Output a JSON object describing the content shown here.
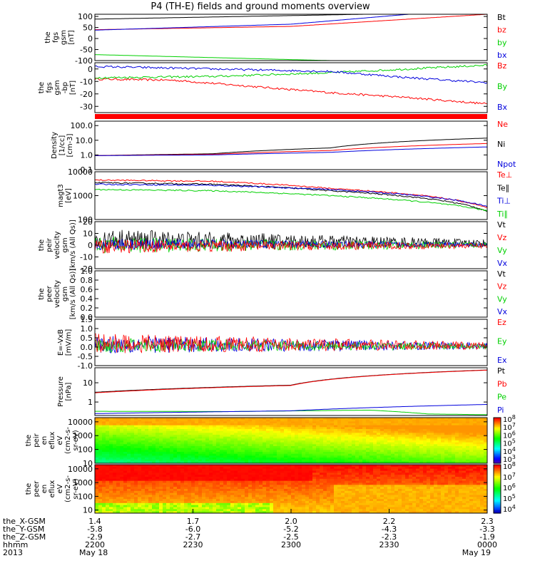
{
  "page": {
    "title": "P4 (TH-E) fields and ground moments overview"
  },
  "colors": {
    "black": "#000000",
    "red": "#ff0000",
    "green": "#00d000",
    "blue": "#0000dd"
  },
  "chart_data": [
    {
      "type": "line",
      "title": "",
      "ylabel": [
        "the",
        "fgs",
        "gsm",
        "[nT]"
      ],
      "ylim": [
        -100,
        110
      ],
      "yticks": [
        {
          "v": 100,
          "t": "100"
        },
        {
          "v": 50,
          "t": "50"
        },
        {
          "v": 0,
          "t": "0"
        },
        {
          "v": -50,
          "t": "-50"
        },
        {
          "v": -100,
          "t": "-100"
        }
      ],
      "legend": [
        {
          "t": "Bt",
          "c": "black"
        },
        {
          "t": "bz",
          "c": "red"
        },
        {
          "t": "by",
          "c": "green"
        },
        {
          "t": "bx",
          "c": "blue"
        }
      ],
      "series": [
        {
          "name": "Bt",
          "color": "black",
          "t": [
            0,
            1
          ],
          "values": [
            88,
            120
          ]
        },
        {
          "name": "bz",
          "color": "red",
          "t": [
            0,
            0.5,
            1
          ],
          "values": [
            40,
            55,
            110
          ]
        },
        {
          "name": "by",
          "color": "green",
          "t": [
            0,
            0.6,
            1
          ],
          "values": [
            -73,
            -100,
            -115
          ]
        },
        {
          "name": "bx",
          "color": "blue",
          "t": [
            0,
            0.5,
            0.8
          ],
          "values": [
            38,
            65,
            110
          ]
        }
      ]
    },
    {
      "type": "line",
      "ylabel": [
        "the",
        "fgs",
        "gsm",
        "-bp",
        "[nT]"
      ],
      "ylim": [
        -35,
        5
      ],
      "yticks": [
        {
          "v": 0,
          "t": "0"
        },
        {
          "v": -10,
          "t": "-10"
        },
        {
          "v": -20,
          "t": "-20"
        },
        {
          "v": -30,
          "t": "-30"
        }
      ],
      "legend": [
        {
          "t": "Bz",
          "c": "red"
        },
        {
          "t": "By",
          "c": "green"
        },
        {
          "t": "Bx",
          "c": "blue"
        }
      ],
      "series": [
        {
          "name": "Bz",
          "color": "red",
          "t": [
            0,
            0.2,
            0.4,
            0.6,
            0.8,
            1
          ],
          "values": [
            -8,
            -9,
            -14,
            -19,
            -23,
            -28
          ]
        },
        {
          "name": "By",
          "color": "green",
          "t": [
            0,
            0.3,
            0.6,
            0.8,
            1
          ],
          "values": [
            -7,
            -6,
            -3,
            0,
            3
          ]
        },
        {
          "name": "Bx",
          "color": "blue",
          "t": [
            0,
            0.3,
            0.6,
            0.8,
            1
          ],
          "values": [
            2,
            0,
            -2,
            -7,
            -11
          ]
        }
      ]
    },
    {
      "type": "bar-indicator",
      "color": "red"
    },
    {
      "type": "line",
      "ylog": true,
      "ylabel": [
        "Density",
        "[1/cc]",
        "[cm-3]"
      ],
      "ylim": [
        0.1,
        200
      ],
      "yticks": [
        {
          "v": 100,
          "t": "100.0"
        },
        {
          "v": 10,
          "t": "10.0"
        },
        {
          "v": 1,
          "t": "1.0"
        },
        {
          "v": 0.1,
          "t": "0.1"
        }
      ],
      "legend": [
        {
          "t": "Ne",
          "c": "red"
        },
        {
          "t": "Ni",
          "c": "black"
        },
        {
          "t": "Npot",
          "c": "blue"
        }
      ],
      "series": [
        {
          "name": "Ni",
          "color": "black",
          "t": [
            0,
            0.3,
            0.6,
            1
          ],
          "values": [
            0.9,
            1.2,
            3.0,
            14
          ]
        },
        {
          "name": "Ne",
          "color": "red",
          "t": [
            0,
            0.3,
            0.6,
            1
          ],
          "values": [
            0.9,
            1.1,
            2.0,
            6
          ]
        },
        {
          "name": "Npot",
          "color": "blue",
          "t": [
            0,
            0.3,
            0.6,
            1
          ],
          "values": [
            0.9,
            1.0,
            1.5,
            3.5
          ]
        }
      ]
    },
    {
      "type": "line",
      "ylog": true,
      "ylabel": [
        "magt3",
        "[eV]"
      ],
      "ylim": [
        100,
        10000
      ],
      "yticks": [
        {
          "v": 10000,
          "t": "10000"
        },
        {
          "v": 1000,
          "t": "1000"
        },
        {
          "v": 100,
          "t": "100"
        }
      ],
      "legend": [
        {
          "t": "Te⊥",
          "c": "red"
        },
        {
          "t": "Te∥",
          "c": "black"
        },
        {
          "t": "Ti⊥",
          "c": "blue"
        },
        {
          "t": "Ti∥",
          "c": "green"
        }
      ],
      "series": [
        {
          "name": "Te⊥",
          "color": "red",
          "t": [
            0,
            0.3,
            0.6,
            1
          ],
          "values": [
            4500,
            4000,
            2000,
            300
          ]
        },
        {
          "name": "Te∥",
          "color": "black",
          "t": [
            0,
            0.3,
            0.6,
            1
          ],
          "values": [
            3500,
            3000,
            1600,
            220
          ]
        },
        {
          "name": "Ti⊥",
          "color": "blue",
          "t": [
            0,
            0.3,
            0.6,
            1
          ],
          "values": [
            3000,
            2700,
            1800,
            350
          ]
        },
        {
          "name": "Ti∥",
          "color": "green",
          "t": [
            0,
            0.3,
            0.6,
            1
          ],
          "values": [
            1800,
            1600,
            1000,
            230
          ]
        }
      ]
    },
    {
      "type": "line",
      "noisy": true,
      "ylabel": [
        "the",
        "peir",
        "velocity",
        "gsm",
        "[km/s (All Qs)]"
      ],
      "ylim": [
        -20,
        20
      ],
      "yticks": [
        {
          "v": 20,
          "t": "20"
        },
        {
          "v": 10,
          "t": "10"
        },
        {
          "v": 0,
          "t": "0"
        },
        {
          "v": -10,
          "t": "-10"
        },
        {
          "v": -20,
          "t": "-20"
        }
      ],
      "legend": [
        {
          "t": "Vt",
          "c": "black"
        },
        {
          "t": "Vz",
          "c": "red"
        },
        {
          "t": "Vy",
          "c": "green"
        },
        {
          "t": "Vx",
          "c": "blue"
        }
      ],
      "series": [
        {
          "name": "Vt",
          "color": "black",
          "base": 5,
          "amp": 9
        },
        {
          "name": "Vy",
          "color": "green",
          "base": 0,
          "amp": 7
        },
        {
          "name": "Vx",
          "color": "blue",
          "base": 1,
          "amp": 5
        },
        {
          "name": "Vz",
          "color": "red",
          "base": -1,
          "amp": 6
        }
      ]
    },
    {
      "type": "line",
      "ylabel": [
        "the",
        "peer",
        "velocity",
        "gsm",
        "[km/s (All Qs)]"
      ],
      "ylim": [
        0,
        1
      ],
      "yticks": [
        {
          "v": 1,
          "t": "1.0"
        },
        {
          "v": 0.8,
          "t": "0.8"
        },
        {
          "v": 0.6,
          "t": "0.6"
        },
        {
          "v": 0.4,
          "t": "0.4"
        },
        {
          "v": 0.2,
          "t": "0.2"
        },
        {
          "v": 0,
          "t": "0.0"
        }
      ],
      "legend": [
        {
          "t": "Vt",
          "c": "black"
        },
        {
          "t": "Vz",
          "c": "red"
        },
        {
          "t": "Vy",
          "c": "green"
        },
        {
          "t": "Vx",
          "c": "blue"
        }
      ],
      "series": []
    },
    {
      "type": "line",
      "noisy": true,
      "ylabel": [
        "E=-VxB",
        "[mV/m]"
      ],
      "ylim": [
        -1,
        1.5
      ],
      "yticks": [
        {
          "v": 1.5,
          "t": "1.5"
        },
        {
          "v": 1,
          "t": "1.0"
        },
        {
          "v": 0.5,
          "t": "0.5"
        },
        {
          "v": 0,
          "t": "0.0"
        },
        {
          "v": -0.5,
          "t": "-0.5"
        },
        {
          "v": -1,
          "t": "-1.0"
        }
      ],
      "legend": [
        {
          "t": "Ez",
          "c": "red"
        },
        {
          "t": "Ey",
          "c": "green"
        },
        {
          "t": "Ex",
          "c": "blue"
        }
      ],
      "series": [
        {
          "name": "Ex",
          "color": "blue",
          "base": 0.15,
          "amp": 0.5
        },
        {
          "name": "Ey",
          "color": "green",
          "base": 0.1,
          "amp": 0.4
        },
        {
          "name": "Ez",
          "color": "red",
          "base": 0.2,
          "amp": 0.55
        }
      ]
    },
    {
      "type": "line",
      "ylog": true,
      "ylabel": [
        "Pressure",
        "[nPa]"
      ],
      "ylim": [
        0.2,
        60
      ],
      "yticks": [
        {
          "v": 10,
          "t": "10"
        },
        {
          "v": 1,
          "t": "1"
        }
      ],
      "legend": [
        {
          "t": "Pt",
          "c": "black"
        },
        {
          "t": "Pb",
          "c": "red"
        },
        {
          "t": "Pe",
          "c": "green"
        },
        {
          "t": "Pi",
          "c": "blue"
        }
      ],
      "series": [
        {
          "name": "Pt",
          "color": "black",
          "t": [
            0,
            0.5,
            1
          ],
          "values": [
            3.2,
            7.5,
            46
          ]
        },
        {
          "name": "Pb",
          "color": "red",
          "t": [
            0,
            0.5,
            1
          ],
          "values": [
            3.0,
            7.2,
            45
          ]
        },
        {
          "name": "Pe",
          "color": "green",
          "t": [
            0,
            0.35,
            0.7,
            0.85,
            1
          ],
          "values": [
            0.33,
            0.32,
            0.38,
            0.24,
            0.22
          ]
        },
        {
          "name": "Pi",
          "color": "blue",
          "t": [
            0,
            0.5,
            1
          ],
          "values": [
            0.25,
            0.35,
            0.75
          ]
        }
      ]
    },
    {
      "type": "heatmap",
      "ylog": true,
      "ylabel": [
        "the",
        "peir",
        "en",
        "eflux",
        "eV",
        "(cm2-s-",
        "sr-eV)"
      ],
      "ylim": [
        10,
        20000
      ],
      "yticks": [
        {
          "v": 10000,
          "t": "10000"
        },
        {
          "v": 1000,
          "t": "1000"
        },
        {
          "v": 100,
          "t": "100"
        },
        {
          "v": 10,
          "t": "10"
        }
      ],
      "colorbar": [
        {
          "t": "10",
          "sup": "8"
        },
        {
          "t": "10",
          "sup": "7"
        },
        {
          "t": "10",
          "sup": "6"
        },
        {
          "t": "10",
          "sup": "5"
        },
        {
          "t": "10",
          "sup": "4"
        },
        {
          "t": "10",
          "sup": "3"
        }
      ]
    },
    {
      "type": "heatmap",
      "ylog": true,
      "ylabel": [
        "the",
        "peer",
        "en",
        "eflux",
        "eV",
        "(cm2-s-",
        "sr-eV)"
      ],
      "ylim": [
        6,
        20000
      ],
      "yticks": [
        {
          "v": 10000,
          "t": "10000"
        },
        {
          "v": 1000,
          "t": "1000"
        },
        {
          "v": 100,
          "t": "100"
        },
        {
          "v": 10,
          "t": "10"
        }
      ],
      "colorbar": [
        {
          "t": "10",
          "sup": "8"
        },
        {
          "t": "10",
          "sup": "7"
        },
        {
          "t": "10",
          "sup": "6"
        },
        {
          "t": "10",
          "sup": "5"
        },
        {
          "t": "10",
          "sup": "4"
        }
      ]
    }
  ],
  "x_axis": {
    "row_labels": [
      "the_X-GSM",
      "the_Y-GSM",
      "the_Z-GSM",
      "hhmm",
      "2013"
    ],
    "columns": [
      {
        "vals": [
          "1.4",
          "-5.8",
          "-2.9",
          "2200",
          "May 18"
        ]
      },
      {
        "vals": [
          "1.7",
          "-6.0",
          "-2.7",
          "2230",
          ""
        ]
      },
      {
        "vals": [
          "2.0",
          "-5.2",
          "-2.5",
          "2300",
          ""
        ]
      },
      {
        "vals": [
          "2.2",
          "-4.3",
          "-2.3",
          "2330",
          ""
        ]
      },
      {
        "vals": [
          "2.3",
          "-3.3",
          "-1.9",
          "0000",
          "May 19"
        ]
      }
    ]
  }
}
